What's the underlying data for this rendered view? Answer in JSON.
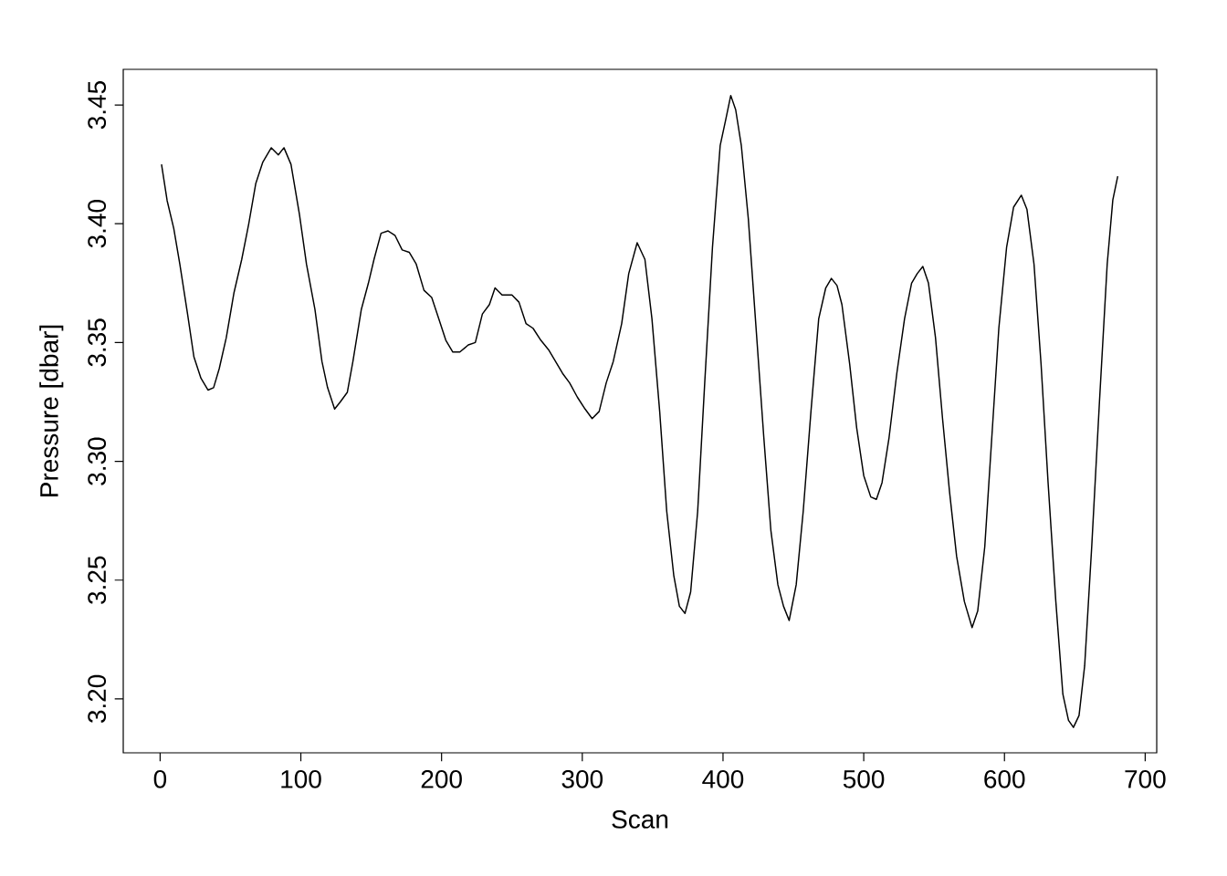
{
  "chart_data": {
    "type": "line",
    "xlabel": "Scan",
    "ylabel": "Pressure [dbar]",
    "xlim": [
      -26.2,
      708.2
    ],
    "ylim": [
      3.1773,
      3.465
    ],
    "xticks": [
      0,
      100,
      200,
      300,
      400,
      500,
      600,
      700
    ],
    "yticks": [
      {
        "value": 3.2,
        "label": "3.20"
      },
      {
        "value": 3.25,
        "label": "3.25"
      },
      {
        "value": 3.3,
        "label": "3.30"
      },
      {
        "value": 3.35,
        "label": "3.35"
      },
      {
        "value": 3.4,
        "label": "3.40"
      },
      {
        "value": 3.45,
        "label": "3.45"
      }
    ],
    "grid": false,
    "marker": "none",
    "line_style": "solid",
    "series": [
      {
        "color": "#000000",
        "x": [
          1,
          5,
          9.7,
          14,
          19.5,
          24,
          29,
          34,
          38,
          42,
          47,
          52.5,
          58,
          63,
          68,
          73,
          79,
          84,
          88,
          93,
          99,
          104,
          110,
          115,
          119,
          124,
          128,
          133,
          137,
          143,
          148,
          152,
          157,
          162,
          167,
          172,
          177,
          182,
          187.5,
          193,
          198,
          203,
          208,
          213,
          219,
          224,
          229,
          234,
          238,
          243,
          250,
          255,
          260,
          265,
          270.5,
          276,
          281,
          286,
          291,
          296.5,
          302,
          307,
          312,
          317,
          322,
          328,
          333,
          339,
          344.5,
          349.5,
          355,
          360,
          365,
          369,
          373,
          377,
          382,
          387,
          392.5,
          398,
          402,
          405.5,
          409,
          413,
          418,
          423.5,
          429,
          434,
          439,
          443,
          447,
          452,
          457,
          462.5,
          468,
          473,
          477,
          481,
          484.5,
          490,
          495,
          500,
          505,
          509,
          513,
          518,
          523.5,
          529,
          534,
          538,
          542,
          546,
          551,
          556,
          561,
          566,
          571.5,
          577,
          581,
          586,
          591,
          596,
          601.5,
          606.5,
          612,
          616,
          621,
          626,
          631,
          636.5,
          641.5,
          645.5,
          649,
          653,
          657,
          662,
          667.5,
          673,
          677,
          680.5
        ],
        "values": [
          3.425,
          3.4097,
          3.398,
          3.383,
          3.362,
          3.344,
          3.335,
          3.33,
          3.331,
          3.339,
          3.352,
          3.371,
          3.385,
          3.4,
          3.417,
          3.426,
          3.432,
          3.429,
          3.432,
          3.425,
          3.404,
          3.383,
          3.364,
          3.342,
          3.331,
          3.322,
          3.325,
          3.329,
          3.342,
          3.364,
          3.375,
          3.385,
          3.396,
          3.397,
          3.395,
          3.389,
          3.388,
          3.383,
          3.372,
          3.369,
          3.36,
          3.351,
          3.346,
          3.346,
          3.349,
          3.35,
          3.362,
          3.366,
          3.373,
          3.37,
          3.37,
          3.367,
          3.358,
          3.356,
          3.351,
          3.347,
          3.342,
          3.337,
          3.333,
          3.327,
          3.322,
          3.318,
          3.321,
          3.333,
          3.342,
          3.358,
          3.379,
          3.392,
          3.385,
          3.36,
          3.321,
          3.279,
          3.252,
          3.239,
          3.236,
          3.245,
          3.279,
          3.333,
          3.39,
          3.433,
          3.444,
          3.454,
          3.448,
          3.433,
          3.402,
          3.356,
          3.31,
          3.271,
          3.248,
          3.239,
          3.233,
          3.248,
          3.279,
          3.321,
          3.36,
          3.373,
          3.377,
          3.374,
          3.366,
          3.341,
          3.314,
          3.294,
          3.285,
          3.284,
          3.291,
          3.31,
          3.337,
          3.36,
          3.375,
          3.379,
          3.382,
          3.375,
          3.352,
          3.318,
          3.287,
          3.26,
          3.241,
          3.23,
          3.237,
          3.264,
          3.31,
          3.356,
          3.39,
          3.407,
          3.412,
          3.406,
          3.383,
          3.341,
          3.291,
          3.241,
          3.202,
          3.191,
          3.188,
          3.193,
          3.214,
          3.264,
          3.325,
          3.383,
          3.41,
          3.42
        ]
      }
    ]
  }
}
